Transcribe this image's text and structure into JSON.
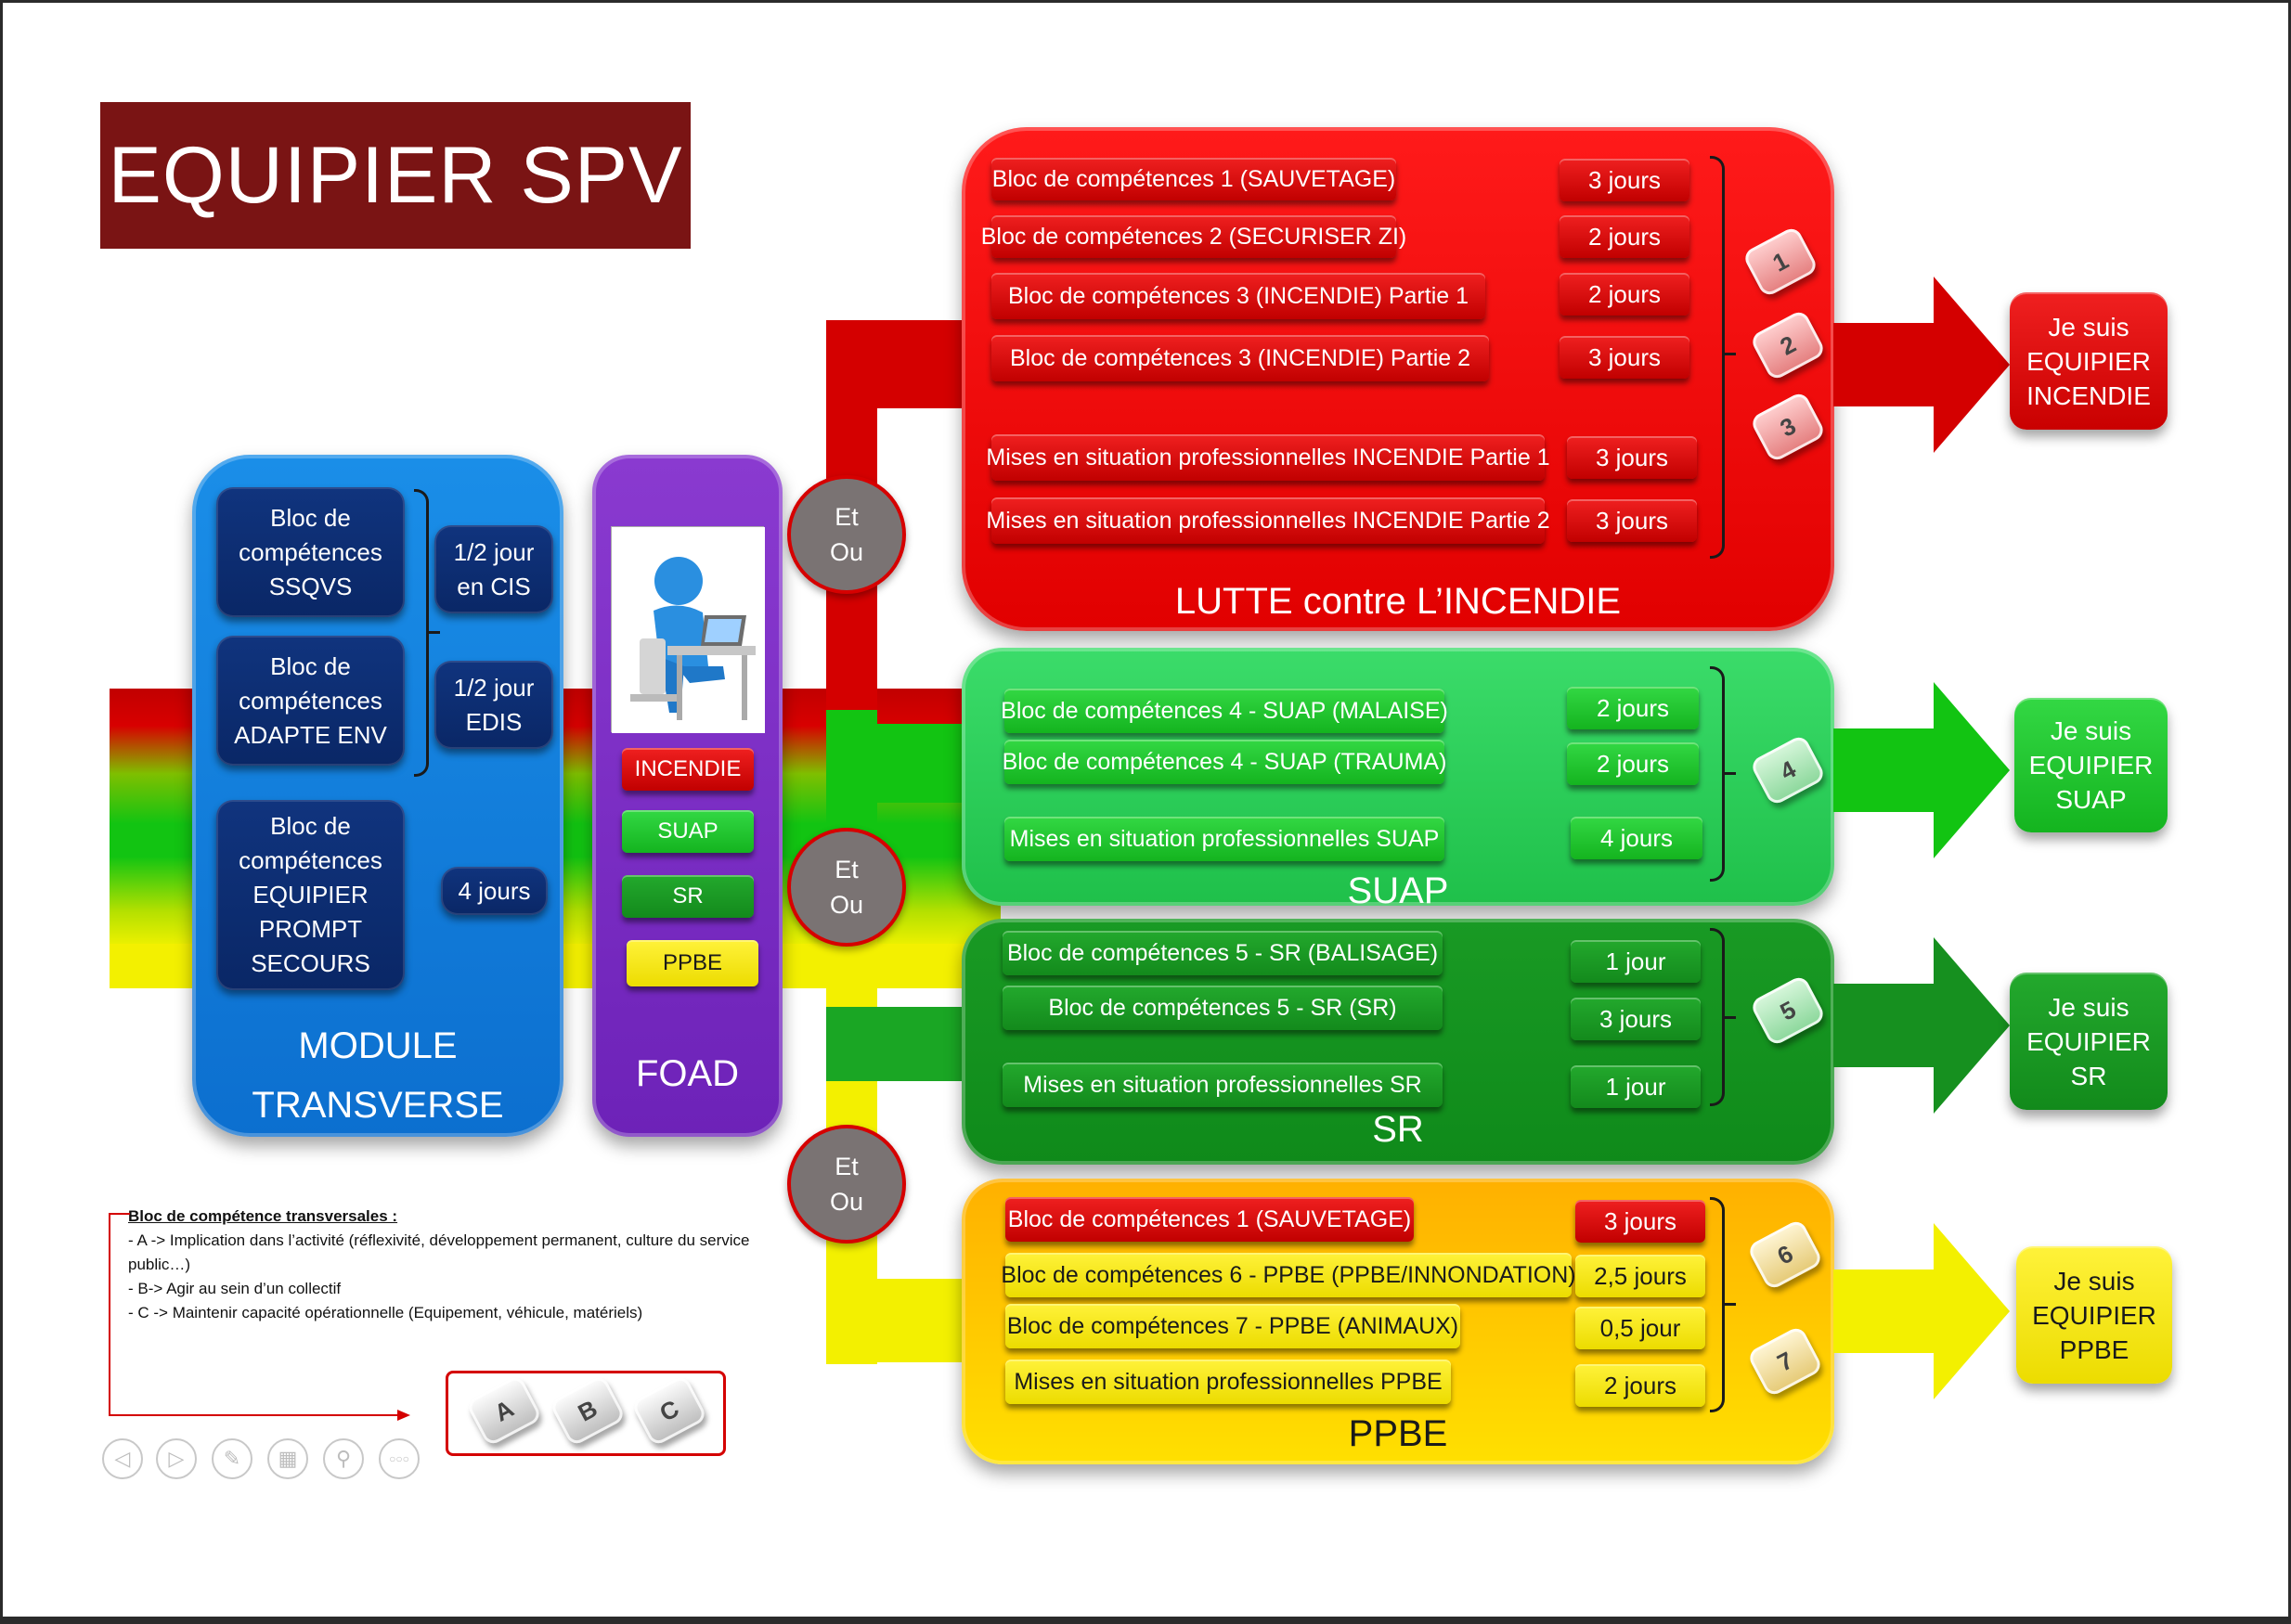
{
  "title": "EQUIPIER SPV",
  "colors": {
    "incendie": "#e10000",
    "suap": "#1fc04a",
    "sr": "#0f8a1a",
    "ppbe": "#ffe000",
    "transverse": "#0c6fcf",
    "foad": "#6d22b8",
    "title_bg": "#7a1414"
  },
  "transverse": {
    "title_line1": "MODULE",
    "title_line2": "TRANSVERSE",
    "blocs": [
      {
        "l1": "Bloc de",
        "l2": "compétences",
        "l3": "SSQVS"
      },
      {
        "l1": "Bloc de",
        "l2": "compétences",
        "l3": "ADAPTE ENV"
      },
      {
        "l1": "Bloc de",
        "l2": "compétences",
        "l3": "EQUIPIER",
        "l4": "PROMPT",
        "l5": "SECOURS"
      }
    ],
    "durations": [
      {
        "l1": "1/2 jour",
        "l2": "en CIS"
      },
      {
        "l1": "1/2 jour",
        "l2": "EDIS"
      },
      {
        "l1": "4 jours"
      }
    ]
  },
  "foad": {
    "title": "FOAD",
    "icon": "person-at-computer-icon",
    "tags": [
      "INCENDIE",
      "SUAP",
      "SR",
      "PPBE"
    ]
  },
  "etou": {
    "l1": "Et",
    "l2": "Ou"
  },
  "incendie": {
    "title": "LUTTE contre L’INCENDIE",
    "rows": [
      {
        "bloc": "Bloc de compétences 1 (SAUVETAGE)",
        "duration": "3 jours"
      },
      {
        "bloc": "Bloc de compétences 2 (SECURISER ZI)",
        "duration": "2 jours"
      },
      {
        "bloc": "Bloc de compétences 3 (INCENDIE) Partie 1",
        "duration": "2 jours"
      },
      {
        "bloc": "Bloc de compétences 3 (INCENDIE) Partie 2",
        "duration": "3 jours"
      },
      {
        "bloc": "Mises en situation professionnelles INCENDIE Partie 1",
        "duration": "3 jours"
      },
      {
        "bloc": "Mises en situation professionnelles INCENDIE Partie 2",
        "duration": "3 jours"
      }
    ],
    "keys": [
      "1",
      "2",
      "3"
    ],
    "output": {
      "l1": "Je suis",
      "l2": "EQUIPIER",
      "l3": "INCENDIE"
    }
  },
  "suap": {
    "title": "SUAP",
    "rows": [
      {
        "bloc": "Bloc de compétences 4 - SUAP (MALAISE)",
        "duration": "2 jours"
      },
      {
        "bloc": "Bloc de compétences 4 - SUAP (TRAUMA)",
        "duration": "2 jours"
      },
      {
        "bloc": "Mises en situation professionnelles SUAP",
        "duration": "4 jours"
      }
    ],
    "keys": [
      "4"
    ],
    "output": {
      "l1": "Je suis",
      "l2": "EQUIPIER",
      "l3": "SUAP"
    }
  },
  "sr": {
    "title": "SR",
    "rows": [
      {
        "bloc": "Bloc de compétences 5 - SR (BALISAGE)",
        "duration": "1 jour"
      },
      {
        "bloc": "Bloc de compétences 5 - SR (SR)",
        "duration": "3 jours"
      },
      {
        "bloc": "Mises en situation professionnelles SR",
        "duration": "1 jour"
      }
    ],
    "keys": [
      "5"
    ],
    "output": {
      "l1": "Je suis",
      "l2": "EQUIPIER",
      "l3": "SR"
    }
  },
  "ppbe": {
    "title": "PPBE",
    "rows": [
      {
        "bloc": "Bloc de compétences 1 (SAUVETAGE)",
        "duration": "3 jours"
      },
      {
        "bloc": "Bloc de compétences 6 - PPBE (PPBE/INNONDATION)",
        "duration": "2,5 jours"
      },
      {
        "bloc": "Bloc de compétences 7 - PPBE (ANIMAUX)",
        "duration": "0,5 jour"
      },
      {
        "bloc": "Mises en situation professionnelles PPBE",
        "duration": "2 jours"
      }
    ],
    "keys": [
      "6",
      "7"
    ],
    "output": {
      "l1": "Je suis",
      "l2": "EQUIPIER",
      "l3": "PPBE"
    }
  },
  "legend": {
    "title": "Bloc de compétence transversales :",
    "lines": [
      "- A -> Implication dans l’activité (réflexivité, développement permanent, culture du service",
      "public…)",
      "- B-> Agir au sein d’un collectif",
      "- C -> Maintenir capacité opérationnelle (Equipement, véhicule, matériels)"
    ],
    "keys": [
      "A",
      "B",
      "C"
    ]
  },
  "nav_icons": [
    "previous-icon",
    "next-icon",
    "pen-icon",
    "slides-icon",
    "zoom-icon",
    "more-icon"
  ],
  "nav_glyphs": [
    "◁",
    "▷",
    "✎",
    "▦",
    "⚲",
    "○○○"
  ]
}
